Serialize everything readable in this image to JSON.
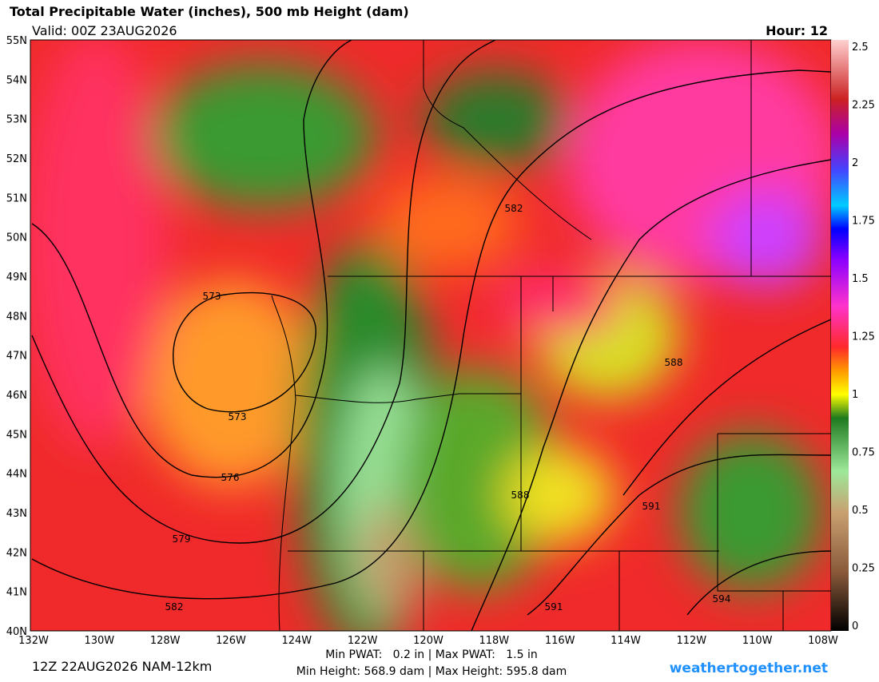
{
  "header": {
    "title": "Total Precipitable Water (inches), 500 mb Height (dam)",
    "valid": "Valid: 00Z 23AUG2026",
    "hour": "Hour: 12"
  },
  "lat_labels": [
    "55N",
    "54N",
    "53N",
    "52N",
    "51N",
    "50N",
    "49N",
    "48N",
    "47N",
    "46N",
    "45N",
    "44N",
    "43N",
    "42N",
    "41N",
    "40N"
  ],
  "lon_labels": [
    "132W",
    "130W",
    "128W",
    "126W",
    "124W",
    "122W",
    "120W",
    "118W",
    "116W",
    "114W",
    "112W",
    "110W",
    "108W"
  ],
  "colorbar_ticks": [
    2.5,
    2.25,
    2,
    1.75,
    1.5,
    1.25,
    1,
    0.75,
    0.5,
    0.25,
    0
  ],
  "contour_labels": [
    "573",
    "573",
    "576",
    "579",
    "582",
    "582",
    "588",
    "588",
    "591",
    "591",
    "594"
  ],
  "footer": {
    "run": "12Z 22AUG2026 NAM-12km",
    "pwat": "Min PWAT:   0.2 in | Max PWAT:   1.5 in",
    "height": "Min Height: 568.9 dam | Max Height: 595.8 dam",
    "site": "weathertogether.net"
  }
}
